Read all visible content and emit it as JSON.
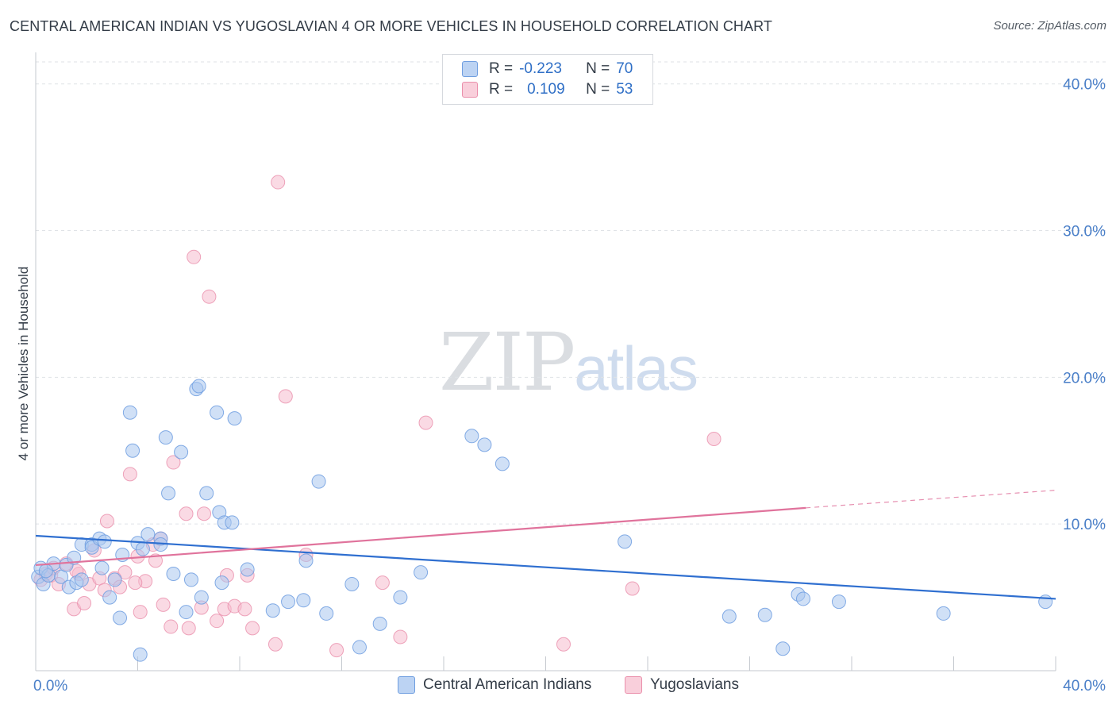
{
  "title": "CENTRAL AMERICAN INDIAN VS YUGOSLAVIAN 4 OR MORE VEHICLES IN HOUSEHOLD CORRELATION CHART",
  "source": "Source: ZipAtlas.com",
  "watermark": {
    "zip": "ZIP",
    "atlas": "atlas"
  },
  "legend": {
    "rows": [
      {
        "r_label": "R =",
        "r_value": "-0.223",
        "n_label": "N =",
        "n_value": "70"
      },
      {
        "r_label": "R =",
        "r_value": "0.109",
        "n_label": "N =",
        "n_value": "53"
      }
    ]
  },
  "chart_data": {
    "type": "scatter",
    "title": "CENTRAL AMERICAN INDIAN VS YUGOSLAVIAN 4 OR MORE VEHICLES IN HOUSEHOLD CORRELATION CHART",
    "xlabel": "",
    "ylabel": "4 or more Vehicles in Household",
    "xlim": [
      0,
      40
    ],
    "ylim": [
      0,
      41.5
    ],
    "x_tick_labels": [
      {
        "value": 0,
        "label": "0.0%"
      },
      {
        "value": 40,
        "label": "40.0%"
      }
    ],
    "y_tick_labels": [
      {
        "value": 10,
        "label": "10.0%"
      },
      {
        "value": 20,
        "label": "20.0%"
      },
      {
        "value": 30,
        "label": "30.0%"
      },
      {
        "value": 40,
        "label": "40.0%"
      }
    ],
    "grid": true,
    "legend_position": "top-center",
    "colors": {
      "central_fill": "#a9c6ef",
      "central_stroke": "#6f9ee0",
      "central_line": "#2f6fd0",
      "yugo_fill": "#f6bccd",
      "yugo_stroke": "#ea8fab",
      "yugo_line": "#e0739c",
      "grid": "#dfe2e6",
      "axis_label": "#4a7fc8"
    },
    "series": [
      {
        "name": "Central American Indians",
        "r": -0.223,
        "n": 70,
        "trend": {
          "x": [
            0,
            40
          ],
          "y": [
            9.2,
            4.9
          ]
        },
        "points": [
          {
            "x": 0.1,
            "y": 6.4
          },
          {
            "x": 0.2,
            "y": 7.0
          },
          {
            "x": 0.3,
            "y": 5.9
          },
          {
            "x": 0.5,
            "y": 6.5
          },
          {
            "x": 0.7,
            "y": 7.3
          },
          {
            "x": 1.0,
            "y": 6.4
          },
          {
            "x": 1.2,
            "y": 7.2
          },
          {
            "x": 1.3,
            "y": 5.7
          },
          {
            "x": 1.5,
            "y": 7.7
          },
          {
            "x": 1.6,
            "y": 6.0
          },
          {
            "x": 1.8,
            "y": 6.2
          },
          {
            "x": 1.8,
            "y": 8.6
          },
          {
            "x": 2.2,
            "y": 8.6
          },
          {
            "x": 2.2,
            "y": 8.4
          },
          {
            "x": 2.5,
            "y": 9.0
          },
          {
            "x": 2.6,
            "y": 7.0
          },
          {
            "x": 2.7,
            "y": 8.8
          },
          {
            "x": 2.9,
            "y": 5.0
          },
          {
            "x": 3.1,
            "y": 6.2
          },
          {
            "x": 3.3,
            "y": 3.6
          },
          {
            "x": 3.4,
            "y": 7.9
          },
          {
            "x": 3.7,
            "y": 17.6
          },
          {
            "x": 3.8,
            "y": 15.0
          },
          {
            "x": 4.0,
            "y": 8.7
          },
          {
            "x": 4.1,
            "y": 1.1
          },
          {
            "x": 4.2,
            "y": 8.3
          },
          {
            "x": 4.4,
            "y": 9.3
          },
          {
            "x": 4.9,
            "y": 9.0
          },
          {
            "x": 4.9,
            "y": 8.6
          },
          {
            "x": 5.1,
            "y": 15.9
          },
          {
            "x": 5.2,
            "y": 12.1
          },
          {
            "x": 5.4,
            "y": 6.6
          },
          {
            "x": 5.7,
            "y": 14.9
          },
          {
            "x": 5.9,
            "y": 4.0
          },
          {
            "x": 6.1,
            "y": 6.2
          },
          {
            "x": 6.3,
            "y": 19.2
          },
          {
            "x": 6.4,
            "y": 19.4
          },
          {
            "x": 6.5,
            "y": 5.0
          },
          {
            "x": 6.7,
            "y": 12.1
          },
          {
            "x": 7.1,
            "y": 17.6
          },
          {
            "x": 7.2,
            "y": 10.8
          },
          {
            "x": 7.3,
            "y": 6.0
          },
          {
            "x": 7.4,
            "y": 10.1
          },
          {
            "x": 7.7,
            "y": 10.1
          },
          {
            "x": 7.8,
            "y": 17.2
          },
          {
            "x": 8.3,
            "y": 6.9
          },
          {
            "x": 9.3,
            "y": 4.1
          },
          {
            "x": 9.9,
            "y": 4.7
          },
          {
            "x": 10.5,
            "y": 4.8
          },
          {
            "x": 10.6,
            "y": 7.5
          },
          {
            "x": 11.1,
            "y": 12.9
          },
          {
            "x": 11.4,
            "y": 3.9
          },
          {
            "x": 12.4,
            "y": 5.9
          },
          {
            "x": 12.7,
            "y": 1.6
          },
          {
            "x": 13.5,
            "y": 3.2
          },
          {
            "x": 14.3,
            "y": 5.0
          },
          {
            "x": 15.1,
            "y": 6.7
          },
          {
            "x": 17.1,
            "y": 16.0
          },
          {
            "x": 17.6,
            "y": 15.4
          },
          {
            "x": 18.3,
            "y": 14.1
          },
          {
            "x": 23.1,
            "y": 8.8
          },
          {
            "x": 27.2,
            "y": 3.7
          },
          {
            "x": 28.6,
            "y": 3.8
          },
          {
            "x": 29.3,
            "y": 1.5
          },
          {
            "x": 29.9,
            "y": 5.2
          },
          {
            "x": 30.1,
            "y": 4.9
          },
          {
            "x": 31.5,
            "y": 4.7
          },
          {
            "x": 35.6,
            "y": 3.9
          },
          {
            "x": 39.6,
            "y": 4.7
          },
          {
            "x": 0.4,
            "y": 6.8
          }
        ]
      },
      {
        "name": "Yugoslavians",
        "r": 0.109,
        "n": 53,
        "trend": {
          "x": [
            0,
            30.2
          ],
          "y": [
            7.2,
            11.1
          ]
        },
        "trend_extension": {
          "x": [
            30.2,
            40
          ],
          "y": [
            11.1,
            12.3
          ]
        },
        "points": [
          {
            "x": 0.2,
            "y": 6.2
          },
          {
            "x": 0.4,
            "y": 6.6
          },
          {
            "x": 0.6,
            "y": 6.5
          },
          {
            "x": 0.9,
            "y": 5.9
          },
          {
            "x": 1.2,
            "y": 7.3
          },
          {
            "x": 1.5,
            "y": 4.2
          },
          {
            "x": 1.7,
            "y": 6.6
          },
          {
            "x": 1.9,
            "y": 4.6
          },
          {
            "x": 2.1,
            "y": 5.9
          },
          {
            "x": 2.3,
            "y": 8.2
          },
          {
            "x": 2.5,
            "y": 6.3
          },
          {
            "x": 2.7,
            "y": 5.5
          },
          {
            "x": 2.8,
            "y": 10.2
          },
          {
            "x": 3.1,
            "y": 6.3
          },
          {
            "x": 3.3,
            "y": 5.7
          },
          {
            "x": 3.5,
            "y": 6.7
          },
          {
            "x": 3.7,
            "y": 13.4
          },
          {
            "x": 4.0,
            "y": 7.8
          },
          {
            "x": 4.1,
            "y": 4.0
          },
          {
            "x": 4.3,
            "y": 6.1
          },
          {
            "x": 4.6,
            "y": 8.6
          },
          {
            "x": 4.7,
            "y": 7.5
          },
          {
            "x": 4.9,
            "y": 9.0
          },
          {
            "x": 5.0,
            "y": 4.5
          },
          {
            "x": 5.3,
            "y": 3.0
          },
          {
            "x": 5.4,
            "y": 14.2
          },
          {
            "x": 5.9,
            "y": 10.7
          },
          {
            "x": 6.0,
            "y": 2.9
          },
          {
            "x": 6.2,
            "y": 28.2
          },
          {
            "x": 6.5,
            "y": 4.3
          },
          {
            "x": 6.6,
            "y": 10.7
          },
          {
            "x": 6.8,
            "y": 25.5
          },
          {
            "x": 7.1,
            "y": 3.4
          },
          {
            "x": 7.4,
            "y": 4.2
          },
          {
            "x": 7.5,
            "y": 6.5
          },
          {
            "x": 7.8,
            "y": 4.4
          },
          {
            "x": 8.2,
            "y": 4.2
          },
          {
            "x": 8.3,
            "y": 6.5
          },
          {
            "x": 8.5,
            "y": 2.9
          },
          {
            "x": 9.4,
            "y": 1.8
          },
          {
            "x": 9.5,
            "y": 33.3
          },
          {
            "x": 9.8,
            "y": 18.7
          },
          {
            "x": 10.6,
            "y": 7.9
          },
          {
            "x": 11.8,
            "y": 1.4
          },
          {
            "x": 13.6,
            "y": 6.0
          },
          {
            "x": 14.3,
            "y": 2.3
          },
          {
            "x": 15.3,
            "y": 16.9
          },
          {
            "x": 20.7,
            "y": 1.8
          },
          {
            "x": 23.4,
            "y": 5.6
          },
          {
            "x": 26.6,
            "y": 15.8
          },
          {
            "x": 0.7,
            "y": 7.0
          },
          {
            "x": 1.6,
            "y": 6.8
          },
          {
            "x": 3.9,
            "y": 6.0
          }
        ]
      }
    ]
  }
}
